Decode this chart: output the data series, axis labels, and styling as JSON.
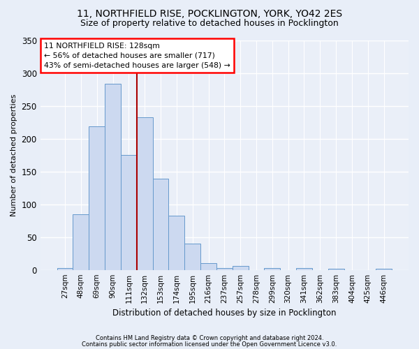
{
  "title_line1": "11, NORTHFIELD RISE, POCKLINGTON, YORK, YO42 2ES",
  "title_line2": "Size of property relative to detached houses in Pocklington",
  "xlabel": "Distribution of detached houses by size in Pocklington",
  "ylabel": "Number of detached properties",
  "footer_line1": "Contains HM Land Registry data © Crown copyright and database right 2024.",
  "footer_line2": "Contains public sector information licensed under the Open Government Licence v3.0.",
  "bin_labels": [
    "27sqm",
    "48sqm",
    "69sqm",
    "90sqm",
    "111sqm",
    "132sqm",
    "153sqm",
    "174sqm",
    "195sqm",
    "216sqm",
    "237sqm",
    "257sqm",
    "278sqm",
    "299sqm",
    "320sqm",
    "341sqm",
    "362sqm",
    "383sqm",
    "404sqm",
    "425sqm",
    "446sqm"
  ],
  "bar_values": [
    3,
    85,
    219,
    284,
    175,
    232,
    139,
    83,
    40,
    10,
    3,
    6,
    0,
    3,
    0,
    3,
    0,
    2,
    0,
    0,
    2
  ],
  "bar_color": "#ccd9f0",
  "bar_edge_color": "#6699cc",
  "vline_color": "#aa0000",
  "vline_label": "11 NORTHFIELD RISE: 128sqm",
  "annotation_line2": "← 56% of detached houses are smaller (717)",
  "annotation_line3": "43% of semi-detached houses are larger (548) →",
  "ylim": [
    0,
    350
  ],
  "yticks": [
    0,
    50,
    100,
    150,
    200,
    250,
    300,
    350
  ],
  "bg_color": "#e8eef8",
  "plot_bg_color": "#eaeff8",
  "grid_color": "#ffffff",
  "title_fontsize": 10,
  "subtitle_fontsize": 9
}
